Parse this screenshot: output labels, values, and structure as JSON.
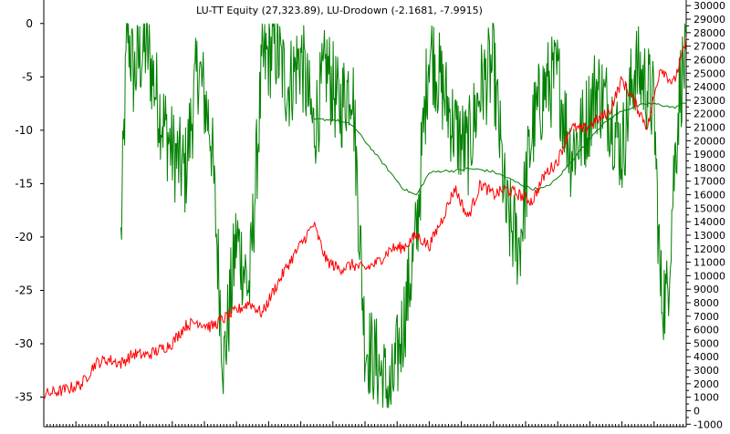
{
  "chart_data": {
    "type": "line",
    "title": "LU-TT Equity (27,323.89), LU-Drodown (-2.1681, -7.9915)",
    "xlabel": "",
    "ylabel_left": "",
    "ylabel_right": "",
    "left_axis": {
      "range": [
        -37.6,
        2.2
      ],
      "ticks": [
        0,
        -5,
        -10,
        -15,
        -20,
        -25,
        -30,
        -35
      ],
      "tick_labels": [
        "0",
        "-5",
        "-10",
        "-15",
        "-20",
        "-25",
        "-30",
        "-35"
      ]
    },
    "right_axis": {
      "range": [
        -1050,
        30420
      ],
      "ticks": [
        30000,
        29000,
        28000,
        27000,
        26000,
        25000,
        24000,
        23000,
        22000,
        21000,
        20000,
        19000,
        18000,
        17000,
        16000,
        15000,
        14000,
        13000,
        12000,
        11000,
        10000,
        9000,
        8000,
        7000,
        6000,
        5000,
        4000,
        3000,
        2000,
        1000,
        0,
        -1000
      ],
      "tick_labels": [
        "30000",
        "29000",
        "28000",
        "27000",
        "26000",
        "25000",
        "24000",
        "23000",
        "22000",
        "21000",
        "20000",
        "19000",
        "18000",
        "17000",
        "16000",
        "15000",
        "14000",
        "13000",
        "12000",
        "11000",
        "10000",
        "9000",
        "8000",
        "7000",
        "6000",
        "5000",
        "4000",
        "3000",
        "2000",
        "1000",
        "0",
        "-1000"
      ]
    },
    "grid": false,
    "legend": "none",
    "series": [
      {
        "role": "drawdown",
        "axis": "left",
        "color": "#008000",
        "x": [
          0.12,
          0.13,
          0.14,
          0.15,
          0.16,
          0.18,
          0.2,
          0.22,
          0.24,
          0.26,
          0.28,
          0.3,
          0.32,
          0.34,
          0.36,
          0.38,
          0.4,
          0.42,
          0.44,
          0.46,
          0.48,
          0.5,
          0.52,
          0.54,
          0.56,
          0.58,
          0.6,
          0.62,
          0.64,
          0.66,
          0.68,
          0.7,
          0.72,
          0.74,
          0.76,
          0.78,
          0.8,
          0.82,
          0.84,
          0.86,
          0.88,
          0.9,
          0.92,
          0.94,
          0.95,
          0.96,
          0.97,
          0.98,
          0.99,
          1.0
        ],
        "y": [
          -20.5,
          0,
          -5,
          -3,
          -2,
          -8,
          -12,
          -14,
          -4,
          -10,
          -32,
          -20,
          -25,
          -4,
          -2,
          -6,
          -3,
          -10,
          -4,
          -8,
          -5,
          -30,
          -32,
          -35,
          -28,
          -20,
          -2,
          -6,
          -10,
          -12,
          -6,
          -4,
          -18,
          -21,
          -10,
          -6,
          -5,
          -12,
          -10,
          -6,
          -8,
          -12,
          -4,
          -6,
          -8,
          -25,
          -26,
          -15,
          -6,
          -3
        ]
      },
      {
        "role": "drawdown-average",
        "axis": "left",
        "color": "#008000",
        "x": [
          0.42,
          0.45,
          0.48,
          0.5,
          0.52,
          0.54,
          0.56,
          0.58,
          0.6,
          0.62,
          0.64,
          0.66,
          0.68,
          0.7,
          0.72,
          0.74,
          0.76,
          0.78,
          0.8,
          0.82,
          0.84,
          0.86,
          0.88,
          0.9,
          0.92,
          0.94,
          0.96,
          0.98,
          1.0
        ],
        "y": [
          -9,
          -9,
          -9.5,
          -11,
          -12.5,
          -14,
          -15.5,
          -16.1,
          -14,
          -13.8,
          -13.8,
          -13.6,
          -13.7,
          -13.9,
          -14.4,
          -15,
          -15.5,
          -15.4,
          -14.5,
          -13,
          -11.5,
          -10,
          -9,
          -8.2,
          -7.8,
          -7.5,
          -7.6,
          -7.9,
          -7.4
        ]
      },
      {
        "role": "equity",
        "axis": "right",
        "color": "#ff0000",
        "x": [
          0.0,
          0.03,
          0.06,
          0.08,
          0.1,
          0.12,
          0.14,
          0.16,
          0.18,
          0.2,
          0.22,
          0.24,
          0.26,
          0.28,
          0.3,
          0.32,
          0.34,
          0.36,
          0.38,
          0.4,
          0.42,
          0.44,
          0.46,
          0.48,
          0.5,
          0.52,
          0.54,
          0.56,
          0.58,
          0.6,
          0.62,
          0.64,
          0.66,
          0.68,
          0.7,
          0.72,
          0.74,
          0.76,
          0.78,
          0.8,
          0.82,
          0.84,
          0.86,
          0.88,
          0.9,
          0.92,
          0.94,
          0.96,
          0.98,
          1.0
        ],
        "y": [
          1200,
          1500,
          2000,
          3500,
          3800,
          3500,
          4200,
          4100,
          4500,
          5000,
          6300,
          6600,
          6200,
          6800,
          7400,
          8000,
          7200,
          9100,
          10800,
          12300,
          13800,
          11100,
          10500,
          10800,
          10500,
          11000,
          12000,
          12100,
          13000,
          12200,
          14200,
          16500,
          14300,
          16800,
          16000,
          16400,
          16000,
          15500,
          17500,
          18500,
          21000,
          20800,
          21500,
          22100,
          24500,
          22800,
          21000,
          25500,
          24200,
          27300
        ]
      }
    ]
  }
}
